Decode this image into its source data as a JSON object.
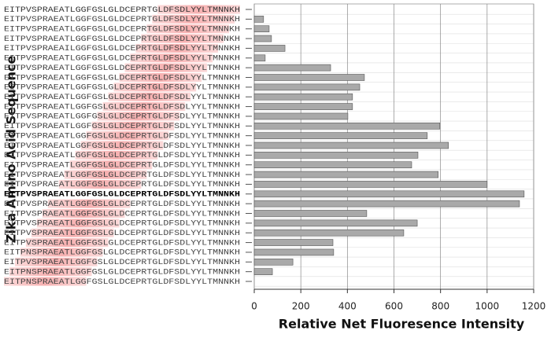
{
  "chart_data": {
    "type": "hbar",
    "xlabel": "Relative Net Fluoresence Intensity",
    "ylabel": "Zika Amino Acid Sequence",
    "categories": [
      "EITPVSPRAEATLGGFGSLGLDCEPRTGLDFSDLYYLTMNNKH",
      "EITPVSPRAEATLGGFGSLGLDCEPRTGLDFSDLYYLTMNNKH",
      "EITPVSPRAEATLGGFGSLGLDCEPRTGLDFSDLYYLTMNNKH",
      "EITPVSPRAEATLGGFGSLGLDCEPRTGLDFSDLYYLTMNNKH",
      "EITPVSPRAEAILGGFGSLGLDCEPRTGLDFSDLYYLTMNNKH",
      "EITPVSPRAEATLGGFGSLGLDCEPRTGLDFSDLYYLTMNNKH",
      "EITPVSPRAEATLGGFGSLGLDCEPRTGLDFSDLYYLTMNNKH",
      "EITPVSPRAEATLGGFGSLGLDCEPRTGLDFSDLYYLTMNNKH",
      "EITPVSPRAEATLGGFGSLGLDCEPRTGLDFSDLYYLTMNNKH",
      "EITPVSPRAEATLGGFGSLGLDCEPRTGLDFSDLYYLTMNNKH",
      "EITPVSPRAEATLGGFGSLGLDCEPRTGLDFSDLYYLTMNNKH",
      "EITPVSPRAEATLGGFGSLGLDCEPRTGLDFSDLYYLTMNNKH",
      "EITPVSPRAEATLGGFGSLGLDCEPRTGLDFSDLYYLTMNNKH",
      "EITPVSPRAEATLGGFGSLGLDCEPRTGLDFSDLYYLTMNNKH",
      "EITPVSPRAEATLGGFGSLGLDCEPRTGLDFSDLYYLTMNNKH",
      "EITPVSPRAEATLGGFGSLGLDCEPRTGLDFSDLYYLTMNNKH",
      "EITPVSPRAEATLGGFGSLGLDCEPRTGLDFSDLYYLTMNNKH",
      "EITPVSPRAEATLGGFGSLGLDCEPRTGLDFSDLYYLTMNNKH",
      "EITPVSPRAEATLGGFGSLGLDCEPRTGLDFSDLYYLTMNNKH",
      "EITPVSPRAEATLGGFGSLGLDCEPRTGLDFSDLYYLTMNNKH",
      "EITPVSPRAEATLGGFGSLGLDCEPRTGLDFSDLYYLTMNNKH",
      "EITPVSPRAEATLGGFGSLGLDCEPRTGLDFSDLYYLTMNNKH",
      "EITPVSPRAEATLGGFGSLGLDCEPRTGLDFSDLYYLTMNNKH",
      "EITPVSPRAEATLGGFGSLGLDCEPRTGLDFSDLYYLTMNNKH",
      "EITPVSPRAEATLGGFGSLGLDCEPRTGLDFSDLYYLTMNNKH",
      "EITPNSPRAEATLGGFGSLGLDCEPRTGLDFSDLYYLTMNNKH",
      "EITPVSPRAEATLGGFGSLGLDCEPRTGLDFSDLYYLTMNNKH",
      "EITPNSPRAEATLGGFGSLGLDCEPRTGLDFSDLYYLTMNNKH",
      "EITPNSPRAEATLGGFGSLGLDCEPRTGLDFSDLYYLTMNNKH"
    ],
    "values": [
      0,
      40,
      64,
      74,
      132,
      47,
      328,
      473,
      453,
      422,
      422,
      402,
      797,
      743,
      834,
      703,
      676,
      790,
      1000,
      1159,
      1139,
      483,
      700,
      642,
      338,
      341,
      166,
      78,
      0
    ],
    "color": "#a9a9a9",
    "xlim": [
      0,
      1200
    ],
    "xticks": [
      0,
      200,
      400,
      600,
      800,
      1000,
      1200
    ],
    "grid": true
  }
}
